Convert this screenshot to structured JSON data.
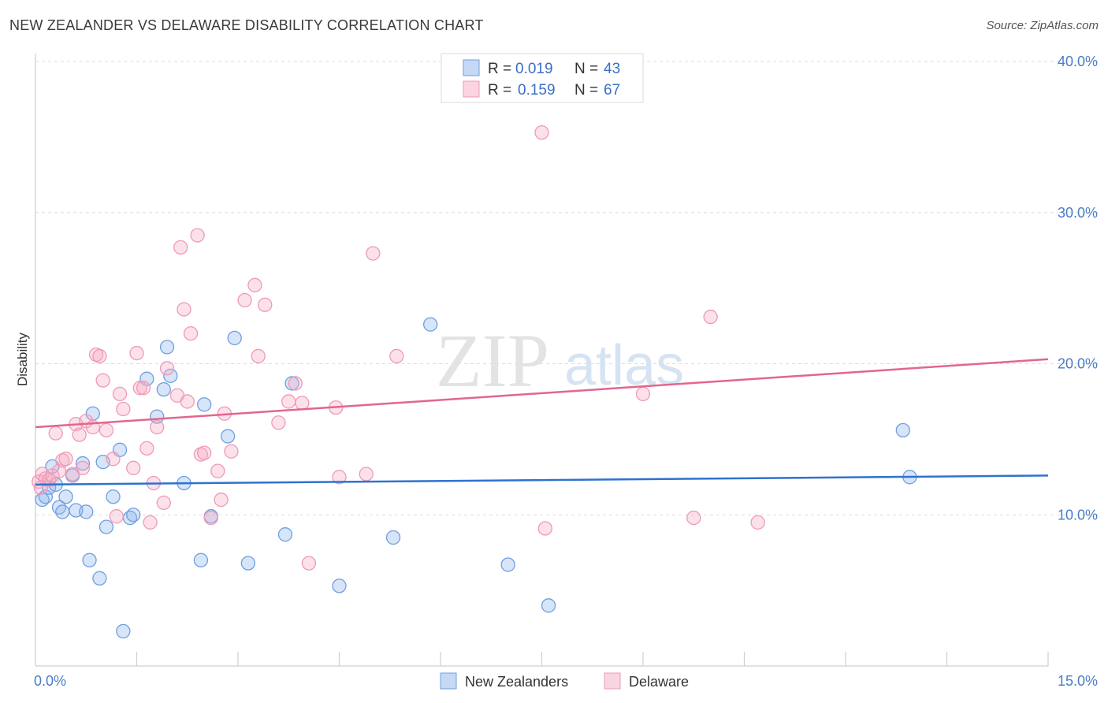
{
  "title": "NEW ZEALANDER VS DELAWARE DISABILITY CORRELATION CHART",
  "source": "Source: ZipAtlas.com",
  "watermark": {
    "zip": "ZIP",
    "atlas": "atlas"
  },
  "colors": {
    "blue": "#6f9fe0",
    "blue_fill": "rgba(140,180,235,0.35)",
    "blue_line": "#2f72cf",
    "pink": "#ee9ab5",
    "pink_fill": "rgba(245,170,195,0.35)",
    "pink_line": "#e2668f",
    "grid": "#dddddd",
    "axis_text": "#4a7cc7"
  },
  "legend_box": {
    "rows": [
      {
        "r_label": "R =",
        "r_value": "0.019",
        "n_label": "N =",
        "n_value": "43",
        "series": "blue"
      },
      {
        "r_label": "R =",
        "r_value": "0.159",
        "n_label": "N =",
        "n_value": "67",
        "series": "pink"
      }
    ]
  },
  "bottom_legend": {
    "blue_label": "New Zealanders",
    "pink_label": "Delaware"
  },
  "chart_data": {
    "type": "scatter",
    "title": "NEW ZEALANDER VS DELAWARE DISABILITY CORRELATION CHART",
    "xlabel": "",
    "ylabel": "Disability",
    "xlim": [
      0,
      15
    ],
    "ylim": [
      0,
      40
    ],
    "x_tick_labels": {
      "min": "0.0%",
      "max": "15.0%"
    },
    "y_ticks": [
      10,
      20,
      30,
      40
    ],
    "y_tick_labels": [
      "10.0%",
      "20.0%",
      "30.0%",
      "40.0%"
    ],
    "grid": true,
    "series": [
      {
        "name": "New Zealanders",
        "color": "blue",
        "trend": {
          "x": [
            0,
            15
          ],
          "y": [
            12.0,
            12.6
          ]
        },
        "points": [
          [
            0.1,
            11.0
          ],
          [
            0.15,
            11.2
          ],
          [
            0.2,
            11.8
          ],
          [
            0.25,
            13.2
          ],
          [
            0.3,
            12.0
          ],
          [
            0.35,
            10.5
          ],
          [
            0.4,
            10.2
          ],
          [
            0.45,
            11.2
          ],
          [
            0.55,
            12.6
          ],
          [
            0.6,
            10.3
          ],
          [
            0.7,
            13.4
          ],
          [
            0.75,
            10.2
          ],
          [
            0.8,
            7.0
          ],
          [
            0.85,
            16.7
          ],
          [
            0.95,
            5.8
          ],
          [
            1.0,
            13.5
          ],
          [
            1.05,
            9.2
          ],
          [
            1.15,
            11.2
          ],
          [
            1.25,
            14.3
          ],
          [
            1.3,
            2.3
          ],
          [
            1.4,
            9.8
          ],
          [
            1.45,
            10.0
          ],
          [
            1.65,
            19.0
          ],
          [
            1.8,
            16.5
          ],
          [
            1.9,
            18.3
          ],
          [
            1.95,
            21.1
          ],
          [
            2.0,
            19.2
          ],
          [
            2.2,
            12.1
          ],
          [
            2.45,
            7.0
          ],
          [
            2.5,
            17.3
          ],
          [
            2.6,
            9.9
          ],
          [
            2.85,
            15.2
          ],
          [
            2.95,
            21.7
          ],
          [
            3.15,
            6.8
          ],
          [
            3.7,
            8.7
          ],
          [
            3.8,
            18.7
          ],
          [
            4.5,
            5.3
          ],
          [
            5.3,
            8.5
          ],
          [
            5.85,
            22.6
          ],
          [
            7.0,
            6.7
          ],
          [
            7.6,
            4.0
          ],
          [
            12.85,
            15.6
          ],
          [
            12.95,
            12.5
          ]
        ]
      },
      {
        "name": "Delaware",
        "color": "pink",
        "trend": {
          "x": [
            0,
            15
          ],
          "y": [
            15.8,
            20.3
          ]
        },
        "points": [
          [
            0.05,
            12.2
          ],
          [
            0.08,
            11.8
          ],
          [
            0.1,
            12.7
          ],
          [
            0.15,
            12.4
          ],
          [
            0.2,
            12.3
          ],
          [
            0.25,
            12.6
          ],
          [
            0.3,
            15.4
          ],
          [
            0.35,
            12.9
          ],
          [
            0.4,
            13.6
          ],
          [
            0.45,
            13.7
          ],
          [
            0.55,
            12.7
          ],
          [
            0.6,
            16.0
          ],
          [
            0.65,
            15.3
          ],
          [
            0.7,
            13.1
          ],
          [
            0.75,
            16.2
          ],
          [
            0.85,
            15.8
          ],
          [
            0.9,
            20.6
          ],
          [
            0.95,
            20.5
          ],
          [
            1.0,
            18.9
          ],
          [
            1.05,
            15.6
          ],
          [
            1.15,
            13.7
          ],
          [
            1.2,
            9.9
          ],
          [
            1.25,
            18.0
          ],
          [
            1.3,
            17.0
          ],
          [
            1.45,
            13.1
          ],
          [
            1.5,
            20.7
          ],
          [
            1.55,
            18.4
          ],
          [
            1.6,
            18.4
          ],
          [
            1.65,
            14.4
          ],
          [
            1.7,
            9.5
          ],
          [
            1.75,
            12.1
          ],
          [
            1.8,
            15.8
          ],
          [
            1.9,
            10.8
          ],
          [
            1.95,
            19.7
          ],
          [
            2.1,
            17.9
          ],
          [
            2.15,
            27.7
          ],
          [
            2.2,
            23.6
          ],
          [
            2.25,
            17.5
          ],
          [
            2.3,
            22.0
          ],
          [
            2.4,
            28.5
          ],
          [
            2.45,
            14.0
          ],
          [
            2.5,
            14.1
          ],
          [
            2.6,
            9.8
          ],
          [
            2.7,
            12.9
          ],
          [
            2.75,
            11.0
          ],
          [
            2.8,
            16.7
          ],
          [
            2.9,
            14.2
          ],
          [
            3.1,
            24.2
          ],
          [
            3.25,
            25.2
          ],
          [
            3.3,
            20.5
          ],
          [
            3.4,
            23.9
          ],
          [
            3.6,
            16.1
          ],
          [
            3.75,
            17.5
          ],
          [
            3.85,
            18.7
          ],
          [
            3.95,
            17.4
          ],
          [
            4.05,
            6.8
          ],
          [
            4.45,
            17.1
          ],
          [
            4.5,
            12.5
          ],
          [
            4.9,
            12.7
          ],
          [
            5.0,
            27.3
          ],
          [
            5.35,
            20.5
          ],
          [
            7.5,
            35.3
          ],
          [
            7.55,
            9.1
          ],
          [
            9.0,
            18.0
          ],
          [
            9.75,
            9.8
          ],
          [
            10.0,
            23.1
          ],
          [
            10.7,
            9.5
          ]
        ]
      }
    ]
  }
}
